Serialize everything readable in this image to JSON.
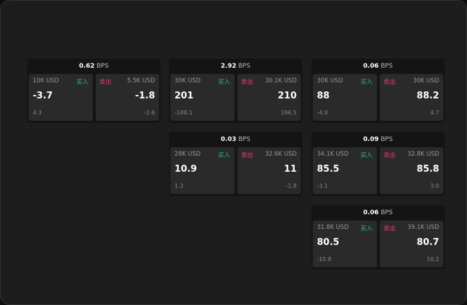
{
  "colors": {
    "buy": "#2fbf6a",
    "sell": "#e0407a"
  },
  "labels": {
    "buy": "买入",
    "sell": "卖出",
    "unit": "BPS"
  },
  "cards": [
    {
      "spread": "0.62",
      "bid_size": "10K USD",
      "bid": "-3.7",
      "bid_sub": "4.3",
      "ask_size": "5.5K USD",
      "ask": "-1.8",
      "ask_sub": "-2.6"
    },
    {
      "spread": "2.92",
      "bid_size": "30K USD",
      "bid": "201",
      "bid_sub": "-188.1",
      "ask_size": "30.1K USD",
      "ask": "210",
      "ask_sub": "196.5"
    },
    {
      "spread": "0.06",
      "bid_size": "30K USD",
      "bid": "88",
      "bid_sub": "-4.9",
      "ask_size": "30K USD",
      "ask": "88.2",
      "ask_sub": "4.7"
    },
    {
      "spread": "0.03",
      "bid_size": "28K USD",
      "bid": "10.9",
      "bid_sub": "1.3",
      "ask_size": "32.6K USD",
      "ask": "11",
      "ask_sub": "-1.8"
    },
    {
      "spread": "0.09",
      "bid_size": "34.1K USD",
      "bid": "85.5",
      "bid_sub": "-3.1",
      "ask_size": "32.8K USD",
      "ask": "85.8",
      "ask_sub": "3.0"
    },
    {
      "spread": "0.06",
      "bid_size": "31.8K USD",
      "bid": "80.5",
      "bid_sub": "-10.8",
      "ask_size": "39.1K USD",
      "ask": "80.7",
      "ask_sub": "10.2"
    }
  ]
}
